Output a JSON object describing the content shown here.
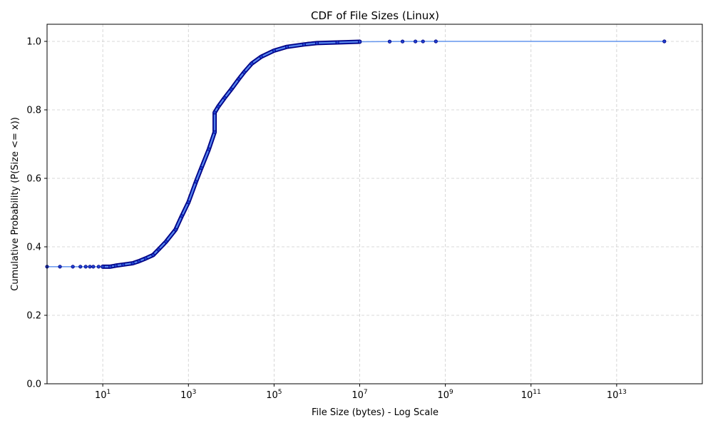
{
  "chart_data": {
    "type": "line",
    "title": "CDF of File Sizes (Linux)",
    "xlabel": "File Size (bytes) - Log Scale",
    "ylabel": "Cumulative Probability (P(Size <= x))",
    "x_scale": "log",
    "xlim": [
      0.5,
      1000000000000000.0
    ],
    "ylim": [
      0.0,
      1.05
    ],
    "x_ticks": [
      {
        "value": 10,
        "base": "10",
        "exp": "1"
      },
      {
        "value": 1000,
        "base": "10",
        "exp": "3"
      },
      {
        "value": 100000,
        "base": "10",
        "exp": "5"
      },
      {
        "value": 10000000,
        "base": "10",
        "exp": "7"
      },
      {
        "value": 1000000000,
        "base": "10",
        "exp": "9"
      },
      {
        "value": 100000000000,
        "base": "10",
        "exp": "11"
      },
      {
        "value": 10000000000000,
        "base": "10",
        "exp": "13"
      }
    ],
    "y_ticks": [
      "0.0",
      "0.2",
      "0.4",
      "0.6",
      "0.8",
      "1.0"
    ],
    "grid": true,
    "colors": {
      "line": "#6495ed",
      "marker_edge": "#000080",
      "marker_fill": "#1f3fd0"
    },
    "series": [
      {
        "x": [
          0.5,
          1,
          2,
          3,
          4,
          5,
          6,
          8,
          10,
          15,
          20,
          30,
          50,
          70,
          100,
          150,
          200,
          300,
          500,
          700,
          1000,
          1500,
          2000,
          3000,
          4096,
          4097,
          5000,
          7000,
          10000,
          15000,
          20000,
          30000,
          50000,
          100000,
          200000,
          500000,
          1000000,
          3000000,
          10000000,
          50000000,
          100000000,
          200000000,
          300000000,
          600000000,
          130000000000000
        ],
        "y": [
          0.342,
          0.342,
          0.342,
          0.342,
          0.342,
          0.342,
          0.342,
          0.342,
          0.342,
          0.342,
          0.345,
          0.348,
          0.352,
          0.358,
          0.366,
          0.376,
          0.392,
          0.415,
          0.45,
          0.49,
          0.53,
          0.59,
          0.63,
          0.685,
          0.735,
          0.792,
          0.81,
          0.835,
          0.86,
          0.89,
          0.91,
          0.935,
          0.955,
          0.973,
          0.984,
          0.991,
          0.995,
          0.997,
          0.999,
          0.9995,
          0.9997,
          0.9998,
          0.9999,
          1.0,
          1.0
        ]
      }
    ]
  }
}
